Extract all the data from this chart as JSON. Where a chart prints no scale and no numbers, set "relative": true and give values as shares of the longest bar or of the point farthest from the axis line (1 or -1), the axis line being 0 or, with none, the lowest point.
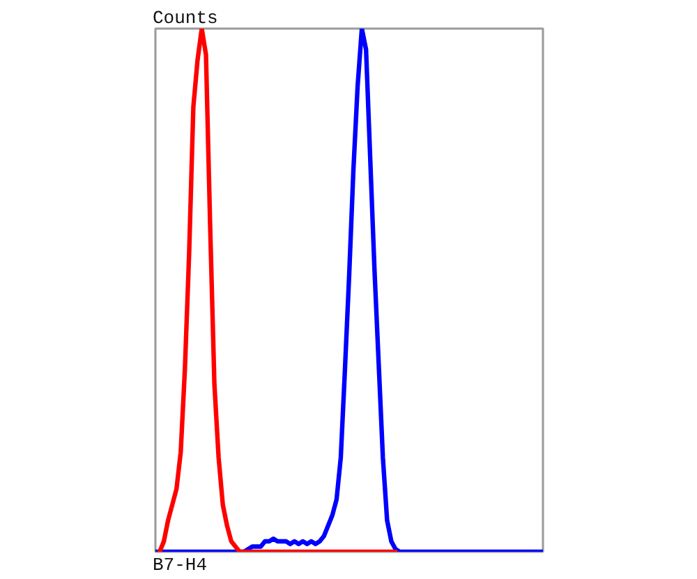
{
  "chart_data": {
    "type": "line",
    "relative": true,
    "xlabel": "B7-H4",
    "ylabel": "Counts",
    "categories": [
      null,
      null,
      null,
      null,
      null,
      null,
      null,
      null,
      null,
      null,
      null,
      null,
      null,
      null,
      null,
      null,
      null,
      null,
      null,
      null,
      null,
      null,
      null,
      null,
      null,
      null,
      null,
      null,
      null,
      null,
      null,
      null,
      null,
      null,
      null,
      null,
      null,
      null,
      null,
      null,
      null,
      null,
      null,
      null,
      null,
      null,
      null,
      null,
      null,
      null,
      null,
      null,
      null,
      null,
      null,
      null,
      null,
      null,
      null,
      null,
      null,
      null,
      null,
      null,
      null,
      null,
      null,
      null,
      null,
      null,
      null,
      null,
      null,
      null,
      null,
      null,
      null,
      null,
      null,
      null,
      null,
      null,
      null,
      null,
      null,
      null,
      null,
      null,
      null,
      null,
      null,
      null,
      null
    ],
    "series": [
      {
        "color": "#0000ff",
        "values": [
          0,
          0,
          0,
          0,
          0,
          0,
          0,
          0,
          0,
          0,
          0,
          0,
          0,
          0,
          0,
          0,
          0,
          0,
          0,
          0,
          0,
          0,
          0.005,
          0.01,
          0.01,
          0.01,
          0.02,
          0.02,
          0.025,
          0.02,
          0.02,
          0.02,
          0.015,
          0.02,
          0.015,
          0.02,
          0.015,
          0.02,
          0.015,
          0.02,
          0.03,
          0.05,
          0.07,
          0.1,
          0.18,
          0.35,
          0.53,
          0.73,
          0.89,
          1.0,
          0.96,
          0.75,
          0.54,
          0.36,
          0.18,
          0.06,
          0.02,
          0.005,
          0,
          0,
          0,
          0,
          0,
          0,
          0,
          0,
          0,
          0,
          0,
          0,
          0,
          0,
          0,
          0,
          0,
          0,
          0,
          0,
          0,
          0,
          0,
          0,
          0,
          0,
          0,
          0,
          0,
          0,
          0,
          0,
          0,
          0,
          0
        ]
      },
      {
        "color": "#ff0000",
        "values": [
          null,
          0,
          0.02,
          0.06,
          0.09,
          0.12,
          0.19,
          0.35,
          0.57,
          0.85,
          0.94,
          1.0,
          0.95,
          0.62,
          0.32,
          0.18,
          0.09,
          0.05,
          0.02,
          0.01,
          0,
          0,
          0,
          0,
          0,
          0,
          0,
          0,
          0,
          0,
          0,
          0,
          0,
          0,
          0,
          0,
          0,
          0,
          0,
          0,
          0,
          0,
          0,
          0,
          0,
          0,
          0,
          0,
          0,
          0,
          0,
          0,
          0,
          0,
          0,
          0,
          0,
          0,
          null,
          null,
          null,
          null,
          null,
          null,
          null,
          null,
          null,
          null,
          null,
          null,
          null,
          null,
          null,
          null,
          null,
          null,
          null,
          null,
          null,
          null,
          null,
          null,
          null,
          null,
          null,
          null,
          null,
          null,
          null,
          null,
          null,
          null,
          null
        ]
      }
    ]
  }
}
